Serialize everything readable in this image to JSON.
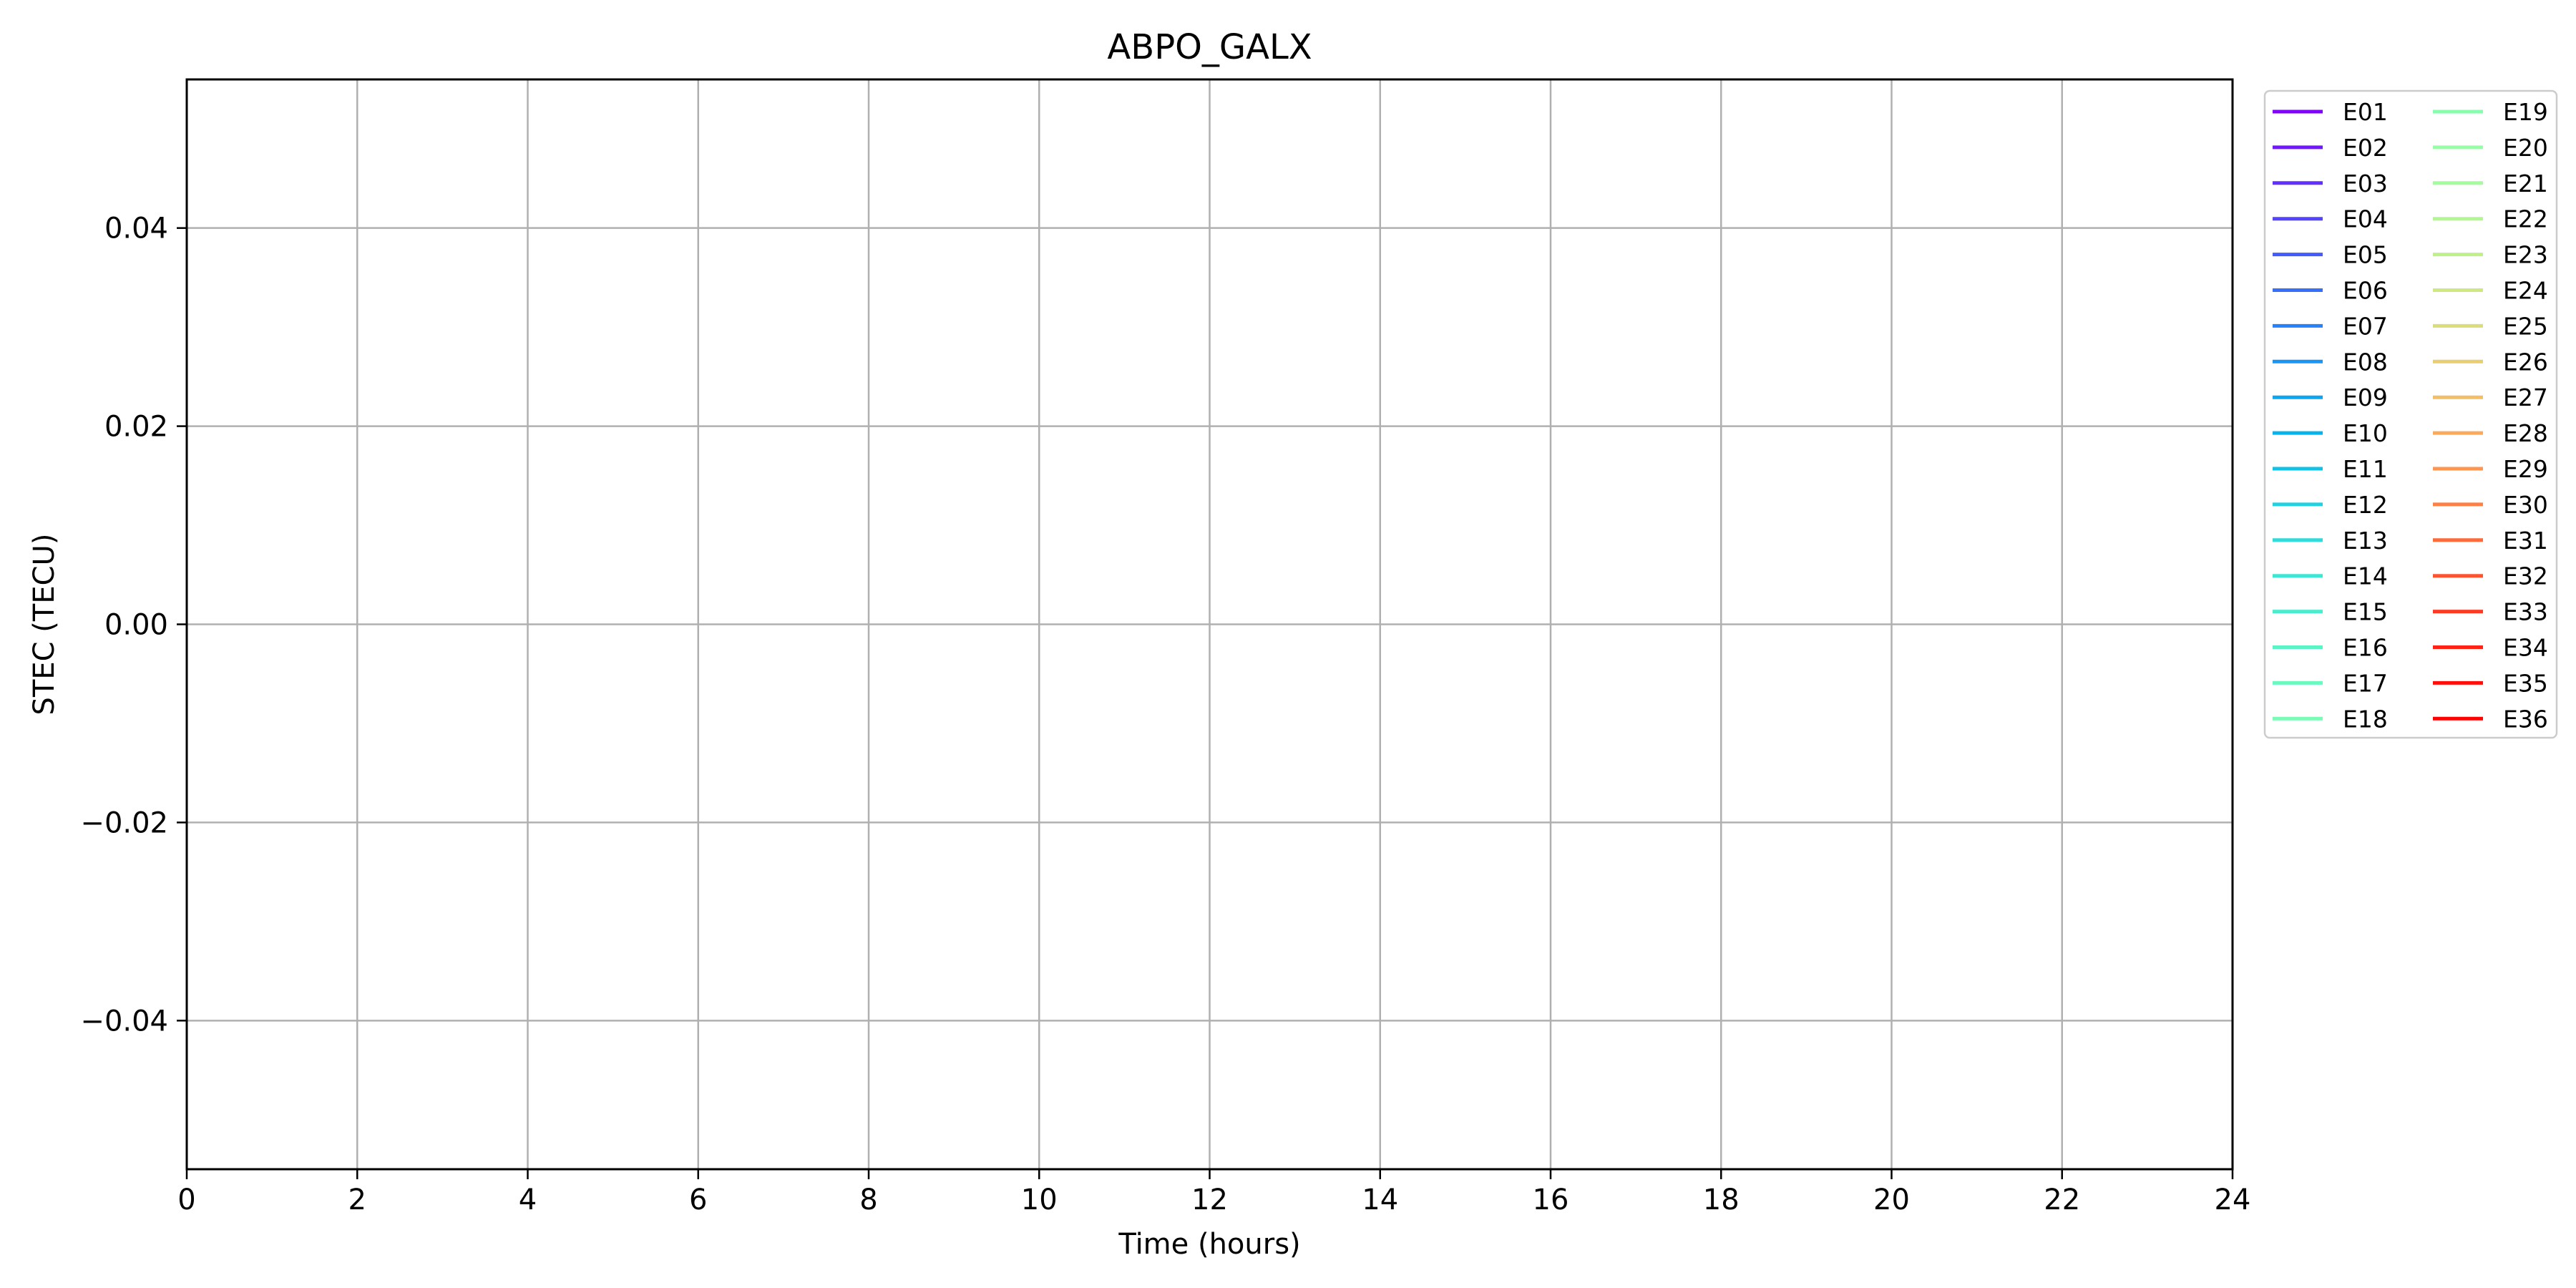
{
  "chart_data": {
    "type": "line",
    "title": "ABPO_GALX",
    "xlabel": "Time (hours)",
    "ylabel": "STEC (TECU)",
    "xlim": [
      0,
      24
    ],
    "ylim": [
      -0.055,
      0.055
    ],
    "xticks": [
      0,
      2,
      4,
      6,
      8,
      10,
      12,
      14,
      16,
      18,
      20,
      22,
      24
    ],
    "xtick_labels": [
      "0",
      "2",
      "4",
      "6",
      "8",
      "10",
      "12",
      "14",
      "16",
      "18",
      "20",
      "22",
      "24"
    ],
    "yticks": [
      -0.04,
      -0.02,
      0.0,
      0.02,
      0.04
    ],
    "ytick_labels": [
      "−0.04",
      "−0.02",
      "0.00",
      "0.02",
      "0.04"
    ],
    "grid": true,
    "legend_position": "outside right, top",
    "legend_columns": 2,
    "series": [
      {
        "name": "E01",
        "color": "#8000ff",
        "values": []
      },
      {
        "name": "E02",
        "color": "#7216ff",
        "values": []
      },
      {
        "name": "E03",
        "color": "#622fff",
        "values": []
      },
      {
        "name": "E04",
        "color": "#5444fe",
        "values": []
      },
      {
        "name": "E05",
        "color": "#445bfc",
        "values": []
      },
      {
        "name": "E06",
        "color": "#366ffa",
        "values": []
      },
      {
        "name": "E07",
        "color": "#2882f7",
        "values": []
      },
      {
        "name": "E08",
        "color": "#1996f3",
        "values": []
      },
      {
        "name": "E09",
        "color": "#0aa6ef",
        "values": []
      },
      {
        "name": "E10",
        "color": "#04b4eb",
        "values": []
      },
      {
        "name": "E11",
        "color": "#12c2e6",
        "values": []
      },
      {
        "name": "E12",
        "color": "#22d0e0",
        "values": []
      },
      {
        "name": "E13",
        "color": "#30dbda",
        "values": []
      },
      {
        "name": "E14",
        "color": "#3ee6d4",
        "values": []
      },
      {
        "name": "E15",
        "color": "#4cedcd",
        "values": []
      },
      {
        "name": "E16",
        "color": "#5cf4c5",
        "values": []
      },
      {
        "name": "E17",
        "color": "#6af9bf",
        "values": []
      },
      {
        "name": "E18",
        "color": "#7afcb6",
        "values": []
      },
      {
        "name": "E19",
        "color": "#86feae",
        "values": []
      },
      {
        "name": "E20",
        "color": "#96fea5",
        "values": []
      },
      {
        "name": "E21",
        "color": "#a4fc9c",
        "values": []
      },
      {
        "name": "E22",
        "color": "#b2f794",
        "values": []
      },
      {
        "name": "E23",
        "color": "#c0f08a",
        "values": []
      },
      {
        "name": "E24",
        "color": "#cee882",
        "values": []
      },
      {
        "name": "E25",
        "color": "#dadd7a",
        "values": []
      },
      {
        "name": "E26",
        "color": "#e8ce70",
        "values": []
      },
      {
        "name": "E27",
        "color": "#f2be66",
        "values": []
      },
      {
        "name": "E28",
        "color": "#fbaa5c",
        "values": []
      },
      {
        "name": "E29",
        "color": "#ff9650",
        "values": []
      },
      {
        "name": "E30",
        "color": "#ff8046",
        "values": []
      },
      {
        "name": "E31",
        "color": "#ff6a3a",
        "values": []
      },
      {
        "name": "E32",
        "color": "#ff522f",
        "values": []
      },
      {
        "name": "E33",
        "color": "#ff3a22",
        "values": []
      },
      {
        "name": "E34",
        "color": "#ff2316",
        "values": []
      },
      {
        "name": "E35",
        "color": "#ff0e0a",
        "values": []
      },
      {
        "name": "E36",
        "color": "#ff0000",
        "values": []
      }
    ]
  }
}
